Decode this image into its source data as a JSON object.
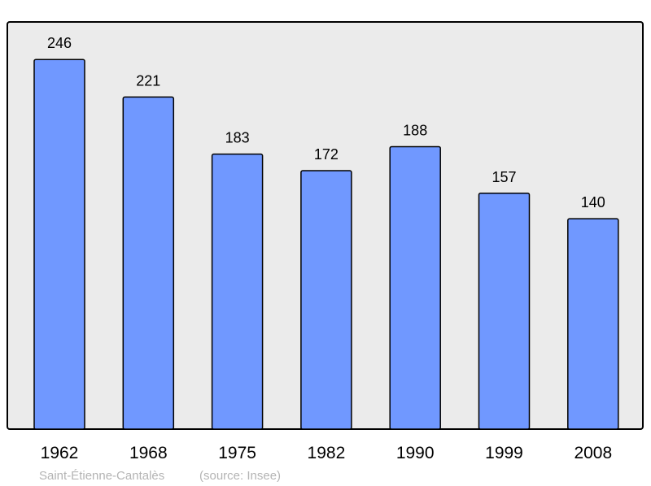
{
  "chart_data": {
    "type": "bar",
    "title": "",
    "xlabel": "",
    "ylabel": "",
    "categories": [
      "1962",
      "1968",
      "1975",
      "1982",
      "1990",
      "1999",
      "2008"
    ],
    "values": [
      246,
      221,
      183,
      172,
      188,
      157,
      140
    ],
    "data_labels": [
      "246",
      "221",
      "183",
      "172",
      "188",
      "157",
      "140"
    ],
    "ylim": [
      0,
      271
    ],
    "grid": false,
    "legend": "none",
    "colors": {
      "bar": "#7098ff",
      "plot_background": "#ebebeb",
      "border": "#000000",
      "footer_text": "#b4b4b4"
    }
  },
  "footer": {
    "place": "Saint-Étienne-Cantalès",
    "source": "(source: Insee)"
  }
}
